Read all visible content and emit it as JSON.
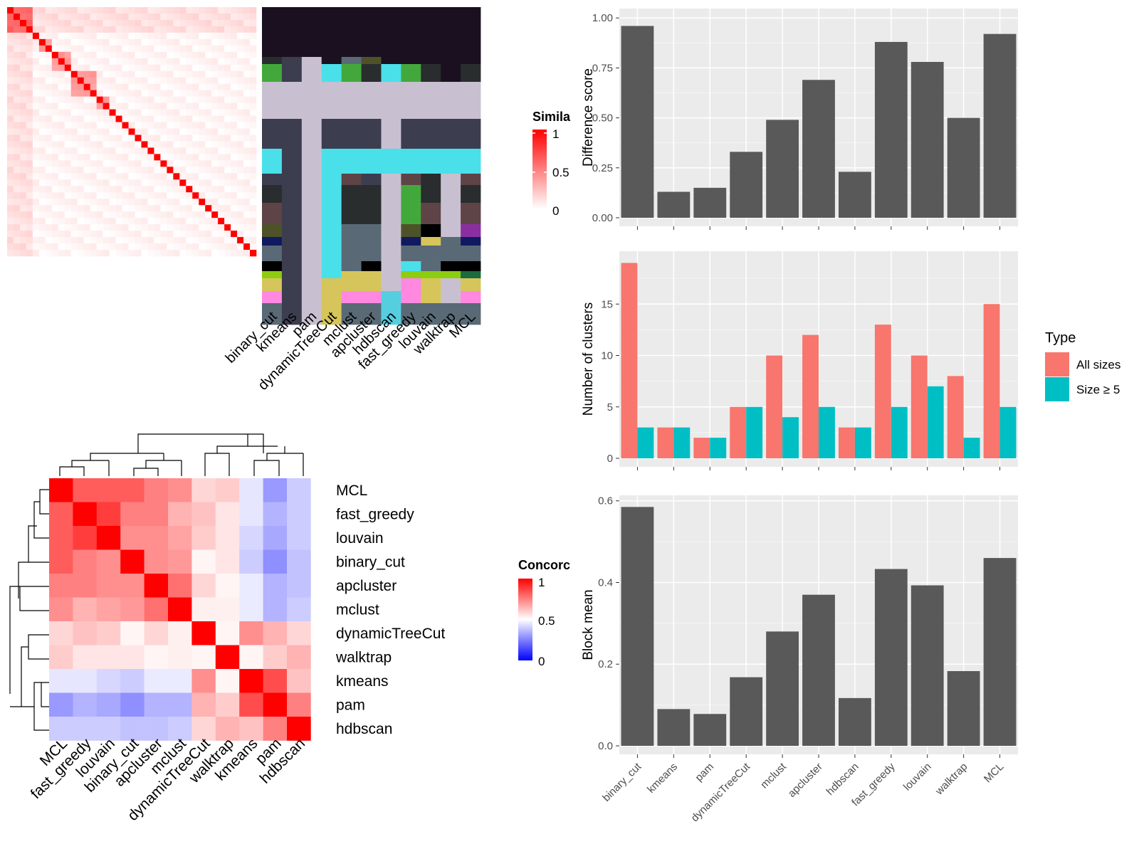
{
  "methods": [
    "binary_cut",
    "kmeans",
    "pam",
    "dynamicTreeCut",
    "mclust",
    "apcluster",
    "hdbscan",
    "fast_greedy",
    "louvain",
    "walktrap",
    "MCL"
  ],
  "colors": {
    "panel_bg": "#ebebeb",
    "grid": "#ffffff",
    "bar": "#595959",
    "all_sizes": "#f8766d",
    "size_ge5": "#00bfc4",
    "sim_high": "#ff0000",
    "sim_low": "#ffffff",
    "conc_high": "#ff0000",
    "conc_mid": "#ffffff",
    "conc_low": "#0000ff",
    "cluster_palette": [
      "#1a1020",
      "#3d3d50",
      "#c8c0d0",
      "#4ae0ea",
      "#43a83c",
      "#2a2d2e",
      "#596a76",
      "#4e5228",
      "#8b2fa0",
      "#101a60",
      "#d6c55a",
      "#ff88e0",
      "#55cfe0",
      "#5e4347",
      "#000000",
      "#8ccd10",
      "#1a6b3e"
    ]
  },
  "similarity_heatmap": {
    "legend_title": "Simila",
    "legend_ticks": [
      "1",
      "0.5",
      "0"
    ],
    "n_terms": 39
  },
  "concordance_heatmap": {
    "legend_title": "Concorc",
    "legend_ticks": [
      "1",
      "0.5",
      "0"
    ],
    "order": [
      "MCL",
      "fast_greedy",
      "louvain",
      "binary_cut",
      "apcluster",
      "mclust",
      "dynamicTreeCut",
      "walktrap",
      "kmeans",
      "pam",
      "hdbscan"
    ],
    "matrix": [
      [
        1.0,
        0.82,
        0.82,
        0.82,
        0.75,
        0.72,
        0.58,
        0.6,
        0.45,
        0.3,
        0.4
      ],
      [
        0.82,
        1.0,
        0.88,
        0.75,
        0.75,
        0.65,
        0.62,
        0.55,
        0.45,
        0.35,
        0.4
      ],
      [
        0.82,
        0.88,
        1.0,
        0.72,
        0.72,
        0.68,
        0.6,
        0.55,
        0.42,
        0.33,
        0.4
      ],
      [
        0.82,
        0.75,
        0.72,
        1.0,
        0.72,
        0.7,
        0.52,
        0.55,
        0.4,
        0.28,
        0.38
      ],
      [
        0.75,
        0.75,
        0.72,
        0.72,
        1.0,
        0.78,
        0.58,
        0.52,
        0.46,
        0.35,
        0.38
      ],
      [
        0.72,
        0.65,
        0.68,
        0.7,
        0.78,
        1.0,
        0.53,
        0.53,
        0.46,
        0.35,
        0.4
      ],
      [
        0.58,
        0.62,
        0.6,
        0.52,
        0.58,
        0.53,
        1.0,
        0.52,
        0.72,
        0.65,
        0.58
      ],
      [
        0.6,
        0.55,
        0.55,
        0.55,
        0.52,
        0.53,
        0.52,
        1.0,
        0.52,
        0.6,
        0.65
      ],
      [
        0.45,
        0.45,
        0.42,
        0.4,
        0.46,
        0.46,
        0.72,
        0.52,
        1.0,
        0.85,
        0.62
      ],
      [
        0.3,
        0.35,
        0.33,
        0.28,
        0.35,
        0.35,
        0.65,
        0.6,
        0.85,
        1.0,
        0.75
      ],
      [
        0.4,
        0.4,
        0.4,
        0.38,
        0.38,
        0.4,
        0.58,
        0.65,
        0.62,
        0.75,
        1.0
      ]
    ]
  },
  "chart_data": [
    {
      "type": "bar",
      "ylabel": "Difference score",
      "xlabel": "",
      "categories": [
        "binary_cut",
        "kmeans",
        "pam",
        "dynamicTreeCut",
        "mclust",
        "apcluster",
        "hdbscan",
        "fast_greedy",
        "louvain",
        "walktrap",
        "MCL"
      ],
      "values": [
        0.96,
        0.13,
        0.15,
        0.33,
        0.49,
        0.69,
        0.23,
        0.88,
        0.78,
        0.5,
        0.92
      ],
      "ylim": [
        0,
        1.04
      ],
      "yticks": [
        "0.00",
        "0.25",
        "0.50",
        "0.75",
        "1.00"
      ],
      "grid": true
    },
    {
      "type": "bar",
      "ylabel": "Number of clusters",
      "xlabel": "",
      "categories": [
        "binary_cut",
        "kmeans",
        "pam",
        "dynamicTreeCut",
        "mclust",
        "apcluster",
        "hdbscan",
        "fast_greedy",
        "louvain",
        "walktrap",
        "MCL"
      ],
      "series": [
        {
          "name": "All sizes",
          "values": [
            19,
            3,
            2,
            5,
            10,
            12,
            3,
            13,
            10,
            8,
            15
          ]
        },
        {
          "name": "Size ≥ 5",
          "values": [
            3,
            3,
            2,
            5,
            4,
            5,
            3,
            5,
            7,
            2,
            5
          ]
        }
      ],
      "ylim": [
        0,
        20
      ],
      "yticks": [
        "0",
        "5",
        "10",
        "15"
      ],
      "legend_title": "Type",
      "legend_position": "right",
      "grid": true
    },
    {
      "type": "bar",
      "ylabel": "Block mean",
      "xlabel": "",
      "categories": [
        "binary_cut",
        "kmeans",
        "pam",
        "dynamicTreeCut",
        "mclust",
        "apcluster",
        "hdbscan",
        "fast_greedy",
        "louvain",
        "walktrap",
        "MCL"
      ],
      "values": [
        0.585,
        0.09,
        0.078,
        0.168,
        0.28,
        0.37,
        0.117,
        0.433,
        0.393,
        0.183,
        0.46
      ],
      "ylim": [
        0,
        0.61
      ],
      "yticks": [
        "0.0",
        "0.2",
        "0.4",
        "0.6"
      ],
      "grid": true
    }
  ]
}
